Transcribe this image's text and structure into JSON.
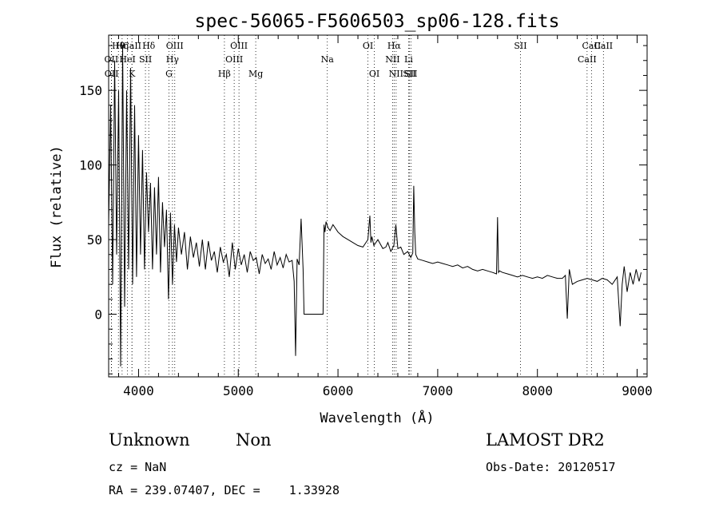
{
  "chart_data": {
    "type": "line",
    "title": "spec-56065-F5606503_sp06-128.fits",
    "xlabel": "Wavelength (Å)",
    "ylabel": "Flux (relative)",
    "xlim": [
      3700,
      9100
    ],
    "ylim": [
      -42,
      187
    ],
    "xticks": [
      4000,
      5000,
      6000,
      7000,
      8000,
      9000
    ],
    "yticks": [
      0,
      50,
      100,
      150
    ],
    "grid": false,
    "lines": [
      {
        "label": "OII",
        "x": 3727,
        "row": 2
      },
      {
        "label": "OII",
        "x": 3729,
        "row": 3
      },
      {
        "label": "Hθ",
        "x": 3798,
        "row": 1
      },
      {
        "label": "Hη",
        "x": 3835,
        "row": 1
      },
      {
        "label": "HeI",
        "x": 3889,
        "row": 2
      },
      {
        "label": "CaII",
        "x": 3934,
        "row": 1
      },
      {
        "label": "K",
        "x": 3934,
        "row": 3
      },
      {
        "label": "SII",
        "x": 4069,
        "row": 2
      },
      {
        "label": "Hδ",
        "x": 4102,
        "row": 1
      },
      {
        "label": "OIII",
        "x": 4363,
        "row": 1
      },
      {
        "label": "Hγ",
        "x": 4340,
        "row": 2
      },
      {
        "label": "G",
        "x": 4305,
        "row": 3
      },
      {
        "label": "Hβ",
        "x": 4861,
        "row": 3
      },
      {
        "label": "OIII",
        "x": 5007,
        "row": 1
      },
      {
        "label": "OIII",
        "x": 4959,
        "row": 2
      },
      {
        "label": "Mg",
        "x": 5175,
        "row": 3
      },
      {
        "label": "Na",
        "x": 5893,
        "row": 2
      },
      {
        "label": "OI",
        "x": 6300,
        "row": 1
      },
      {
        "label": "OI",
        "x": 6364,
        "row": 3
      },
      {
        "label": "Hα",
        "x": 6563,
        "row": 1
      },
      {
        "label": "NII",
        "x": 6548,
        "row": 2
      },
      {
        "label": "NII",
        "x": 6583,
        "row": 3
      },
      {
        "label": "Li",
        "x": 6708,
        "row": 2
      },
      {
        "label": "SII",
        "x": 6716,
        "row": 3
      },
      {
        "label": "SII",
        "x": 6731,
        "row": 3
      },
      {
        "label": "SII",
        "x": 7830,
        "row": 1
      },
      {
        "label": "CaII",
        "x": 8542,
        "row": 1
      },
      {
        "label": "CaII",
        "x": 8498,
        "row": 2
      },
      {
        "label": "CaII",
        "x": 8662,
        "row": 1
      }
    ],
    "series": [
      {
        "x": [
          3700,
          3720,
          3740,
          3760,
          3780,
          3800,
          3820,
          3840,
          3860,
          3880,
          3900,
          3920,
          3940,
          3960,
          3980,
          4000,
          4020,
          4040,
          4060,
          4080,
          4100,
          4120,
          4140,
          4160,
          4180,
          4200,
          4220,
          4240,
          4260,
          4280,
          4300,
          4320,
          4340,
          4360,
          4380,
          4400,
          4430,
          4460,
          4490,
          4520,
          4550,
          4580,
          4610,
          4640,
          4670,
          4700,
          4730,
          4760,
          4790,
          4820,
          4850,
          4880,
          4910,
          4940,
          4970,
          5000,
          5030,
          5060,
          5090,
          5120,
          5150,
          5180,
          5210,
          5240,
          5270,
          5300,
          5330,
          5360,
          5390,
          5420,
          5450,
          5480,
          5510,
          5540,
          5560,
          5575,
          5590,
          5610,
          5630,
          5650,
          5660,
          5670,
          5700,
          5750,
          5800,
          5850,
          5860,
          5870,
          5880,
          5900,
          5920,
          5950,
          6000,
          6050,
          6100,
          6150,
          6200,
          6250,
          6300,
          6320,
          6330,
          6340,
          6360,
          6400,
          6450,
          6480,
          6500,
          6530,
          6560,
          6580,
          6600,
          6630,
          6660,
          6700,
          6730,
          6750,
          6760,
          6770,
          6780,
          6800,
          6850,
          6900,
          6950,
          7000,
          7050,
          7100,
          7150,
          7200,
          7250,
          7300,
          7350,
          7400,
          7450,
          7500,
          7550,
          7590,
          7600,
          7610,
          7620,
          7650,
          7700,
          7750,
          7800,
          7850,
          7900,
          7950,
          8000,
          8050,
          8100,
          8150,
          8200,
          8250,
          8280,
          8300,
          8320,
          8350,
          8400,
          8450,
          8500,
          8550,
          8600,
          8650,
          8700,
          8750,
          8800,
          8830,
          8850,
          8870,
          8900,
          8930,
          8960,
          8990,
          9020,
          9040
        ],
        "values": [
          60,
          140,
          20,
          170,
          40,
          150,
          -35,
          180,
          5,
          150,
          30,
          165,
          20,
          140,
          25,
          120,
          40,
          110,
          30,
          95,
          55,
          88,
          30,
          85,
          40,
          92,
          28,
          75,
          45,
          70,
          10,
          68,
          20,
          60,
          35,
          58,
          40,
          55,
          30,
          52,
          38,
          48,
          32,
          50,
          30,
          49,
          36,
          42,
          28,
          45,
          35,
          40,
          25,
          48,
          30,
          44,
          33,
          40,
          28,
          42,
          36,
          38,
          27,
          40,
          34,
          37,
          30,
          42,
          33,
          38,
          31,
          40,
          35,
          36,
          22,
          -28,
          37,
          33,
          64,
          30,
          0,
          0,
          0,
          0,
          0,
          0,
          60,
          55,
          62,
          58,
          56,
          60,
          55,
          52,
          50,
          48,
          46,
          45,
          50,
          66,
          48,
          52,
          46,
          50,
          44,
          45,
          48,
          42,
          46,
          60,
          44,
          45,
          40,
          42,
          38,
          41,
          86,
          55,
          40,
          37,
          36,
          35,
          34,
          35,
          34,
          33,
          32,
          33,
          31,
          32,
          30,
          29,
          30,
          29,
          28,
          27,
          65,
          28,
          29,
          28,
          27,
          26,
          25,
          26,
          25,
          24,
          25,
          24,
          26,
          25,
          24,
          24,
          26,
          -3,
          30,
          20,
          22,
          23,
          24,
          23,
          22,
          24,
          23,
          20,
          25,
          -8,
          20,
          32,
          15,
          28,
          20,
          30,
          22,
          28
        ]
      }
    ]
  },
  "info": {
    "class": "Unknown",
    "subclass": "Non",
    "survey": "LAMOST DR2",
    "cz": "cz = NaN",
    "obs_date": "Obs-Date: 20120517",
    "radec": "RA = 239.07407, DEC =    1.33928"
  }
}
